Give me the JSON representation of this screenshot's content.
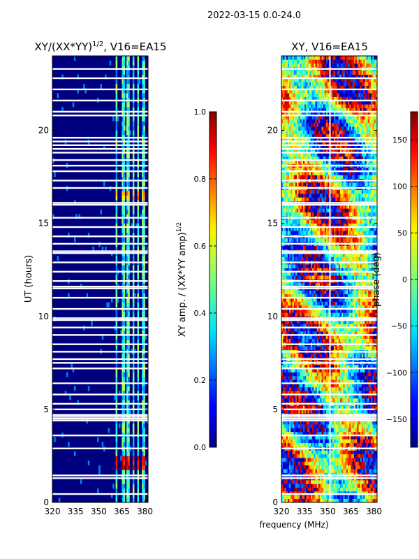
{
  "suptitle": "2022-03-15 0.0-24.0",
  "colors": {
    "frame": "#000000",
    "gap": "#ffffff",
    "background": "#00007f"
  },
  "chart_data": [
    {
      "type": "heatmap",
      "title_main": "XY/(XX*YY)",
      "title_exp": "1/2",
      "title_suffix": ", V16=EA15",
      "xlabel": "",
      "ylabel": "UT (hours)",
      "xlim": [
        320,
        382
      ],
      "ylim": [
        0,
        24
      ],
      "xticks": [
        "320",
        "335",
        "350",
        "365",
        "380"
      ],
      "xtick_values": [
        320,
        335,
        350,
        365,
        380
      ],
      "yticks": [
        "0",
        "5",
        "10",
        "15",
        "20"
      ],
      "ytick_values": [
        0,
        5,
        10,
        15,
        20
      ],
      "rfi_free_bands_mhz": [
        [
          360.5,
          362.5
        ],
        [
          365,
          367
        ],
        [
          368,
          370
        ],
        [
          371.5,
          373.5
        ],
        [
          374.5,
          376.5
        ],
        [
          378,
          380
        ]
      ],
      "typical_band_value": 0.4,
      "colorbar": {
        "label_main": "XY amp. / (XX*YY amp)",
        "label_exp": "1/2",
        "range": [
          0,
          1
        ],
        "ticks": [
          "0.0",
          "0.2",
          "0.4",
          "0.6",
          "0.8",
          "1.0"
        ],
        "tick_values": [
          0,
          0.2,
          0.4,
          0.6,
          0.8,
          1.0
        ]
      }
    },
    {
      "type": "heatmap",
      "title": "XY, V16=EA15",
      "xlabel": "frequency (MHz)",
      "ylabel": "",
      "xlim": [
        320,
        382
      ],
      "ylim": [
        0,
        24
      ],
      "xticks": [
        "320",
        "335",
        "350",
        "365",
        "380"
      ],
      "xtick_values": [
        320,
        335,
        350,
        365,
        380
      ],
      "yticks": [
        "0",
        "5",
        "10",
        "15",
        "20"
      ],
      "ytick_values": [
        0,
        5,
        10,
        15,
        20
      ],
      "colorbar": {
        "label": "phase (deg)",
        "range": [
          -180,
          180
        ],
        "ticks": [
          "−150",
          "−100",
          "−50",
          "0",
          "50",
          "100",
          "150"
        ],
        "tick_values": [
          -150,
          -100,
          -50,
          0,
          50,
          100,
          150
        ]
      }
    }
  ],
  "flagged_hours": [
    0.45,
    1.3,
    1.45,
    2.9,
    3.6,
    4.4,
    4.5,
    4.6,
    4.7,
    5.0,
    5.3,
    5.8,
    6.4,
    7.2,
    7.5,
    7.7,
    8.1,
    8.5,
    9.0,
    9.4,
    9.8,
    9.9,
    10.4,
    11.0,
    11.5,
    11.6,
    11.9,
    12.4,
    12.9,
    13.4,
    13.5,
    13.9,
    14.3,
    14.8,
    15.3,
    16.0,
    16.1,
    16.9,
    17.3,
    17.8,
    18.1,
    18.4,
    18.8,
    19.0,
    19.2,
    19.4,
    19.6,
    20.8,
    21.0,
    21.6,
    22.2,
    22.8,
    23.3
  ]
}
